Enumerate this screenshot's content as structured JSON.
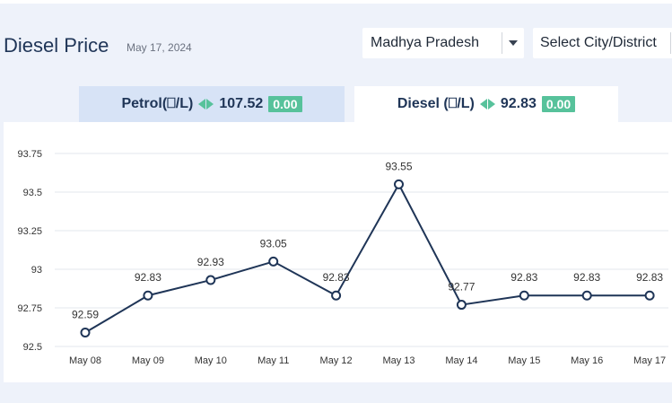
{
  "header": {
    "title": "Diesel Price",
    "date": "May 17, 2024"
  },
  "filters": {
    "state": "Madhya Pradesh",
    "city_placeholder": "Select City/District"
  },
  "tabs": [
    {
      "label": "Petrol(⎕/L)",
      "price": "107.52",
      "change": "0.00",
      "active": false
    },
    {
      "label": "Diesel (⎕/L)",
      "price": "92.83",
      "change": "0.00",
      "active": true
    }
  ],
  "colors": {
    "line": "#1f3557",
    "badge": "#57c29b",
    "inactive_tab": "#d7e3f6"
  },
  "chart_data": {
    "type": "line",
    "categories": [
      "May 08",
      "May 09",
      "May 10",
      "May 11",
      "May 12",
      "May 13",
      "May 14",
      "May 15",
      "May 16",
      "May 17"
    ],
    "series": [
      {
        "values": [
          92.59,
          92.83,
          92.93,
          93.05,
          92.83,
          93.55,
          92.77,
          92.83,
          92.83,
          92.83
        ]
      }
    ],
    "data_labels": [
      "92.59",
      "92.83",
      "92.93",
      "93.05",
      "92.83",
      "93.55",
      "92.77",
      "92.83",
      "92.83",
      "92.83"
    ],
    "yticks": [
      "92.5",
      "92.75",
      "93",
      "93.25",
      "93.5",
      "93.75"
    ],
    "ylim": [
      92.5,
      93.75
    ],
    "grid": true
  }
}
